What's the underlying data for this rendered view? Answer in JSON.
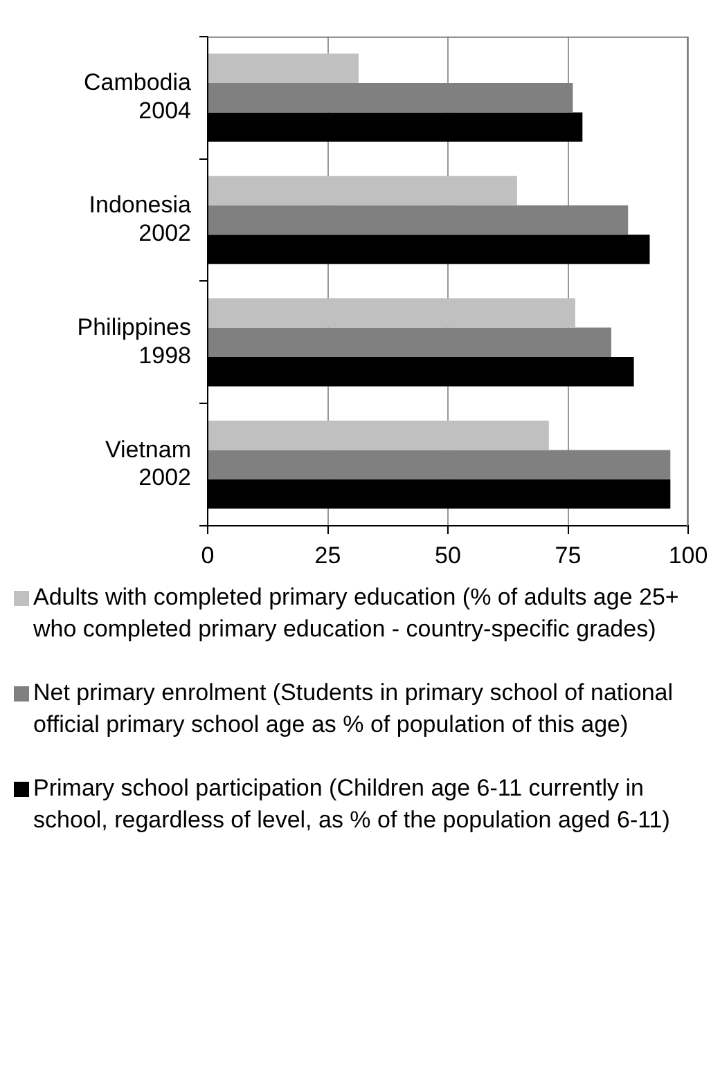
{
  "chart_data": {
    "type": "bar",
    "orientation": "horizontal",
    "categories": [
      "Cambodia 2004",
      "Indonesia 2002",
      "Philippines 1998",
      "Vietnam 2002"
    ],
    "series": [
      {
        "name": "Adults with completed primary education (% of adults age 25+ who completed primary education - country-specific grades)",
        "color": "#c0c0c0",
        "values": [
          31.4,
          64.4,
          76.5,
          71
        ]
      },
      {
        "name": "Net primary enrolment (Students in primary school of national official primary school age as % of population of this age)",
        "color": "#808080",
        "values": [
          76,
          87.5,
          84,
          96.3
        ]
      },
      {
        "name": "Primary school participation (Children age 6-11 currently in school, regardless of level, as % of the population aged 6-11)",
        "color": "#000000",
        "values": [
          78,
          92,
          88.7,
          96.3
        ]
      }
    ],
    "xlim": [
      0,
      100
    ],
    "xticks": [
      0,
      25,
      50,
      75,
      100
    ],
    "grid": "x",
    "legend": "bottom"
  }
}
